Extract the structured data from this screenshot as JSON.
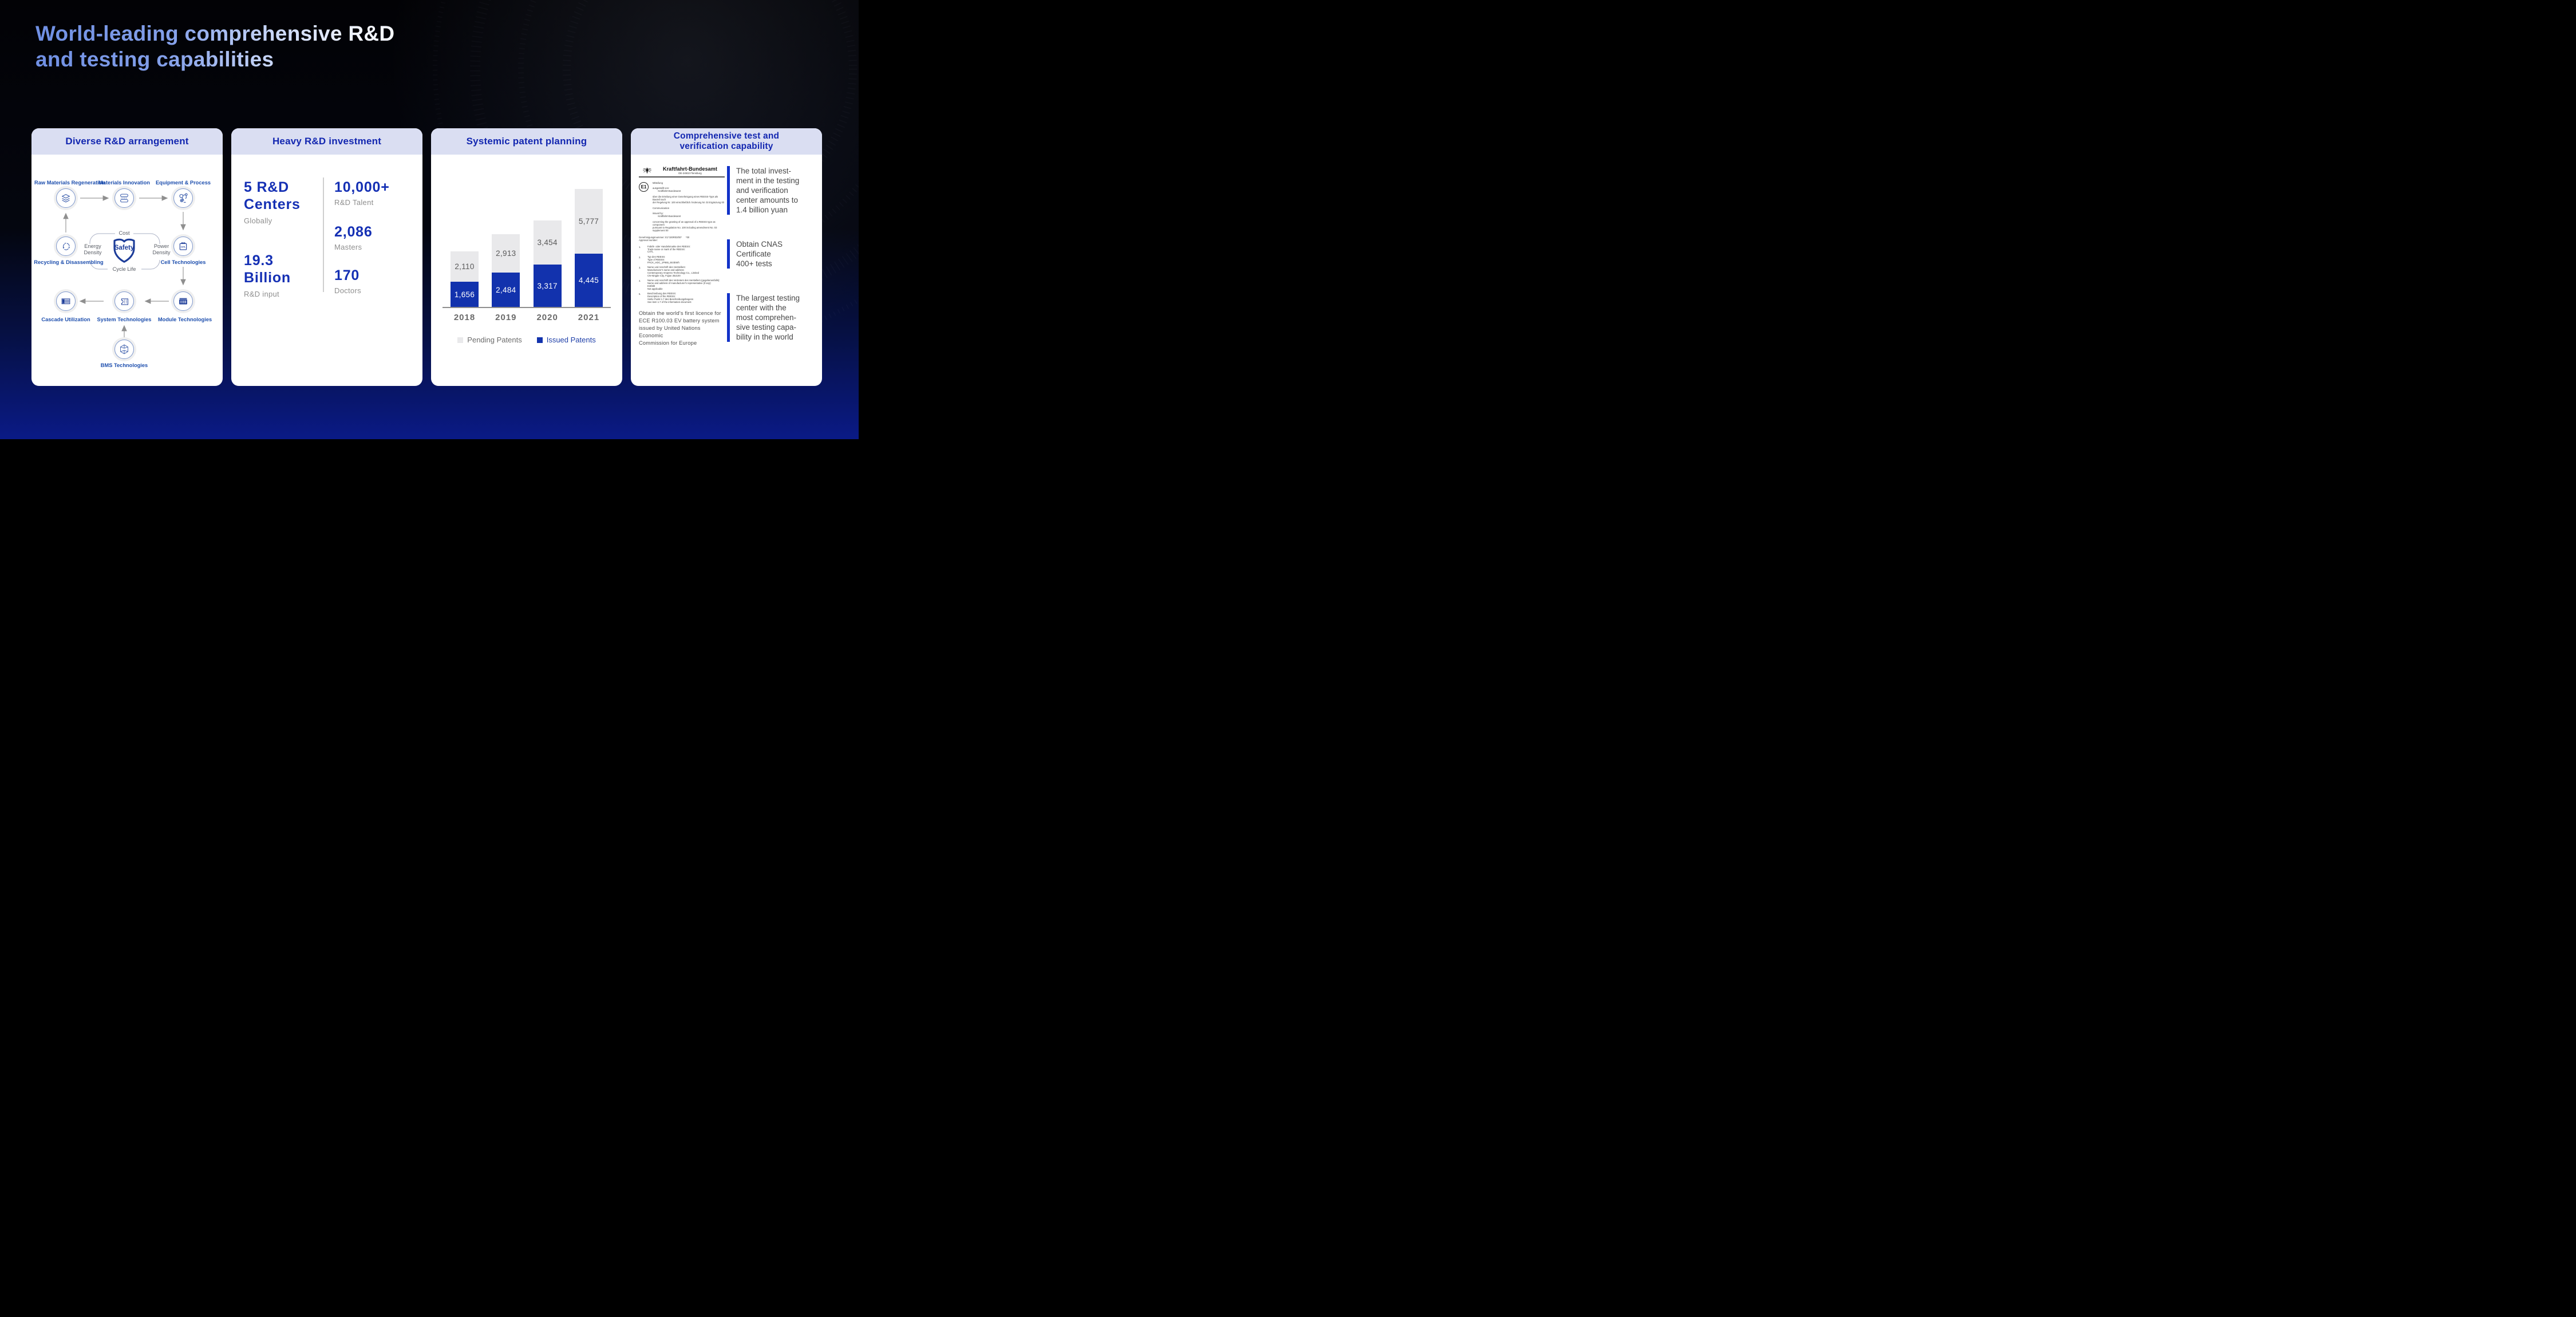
{
  "slide": {
    "title_lines": [
      "World-leading comprehensive R&D",
      "and testing capabilities"
    ]
  },
  "colors": {
    "accent_blue": "#1226b0",
    "issued_blue": "#1232ad",
    "pending_gray": "#e9e9eb",
    "header_bg": "#dadef2",
    "shield_navy": "#1d3d99",
    "bottom_gradient_blue": "#0a1a86"
  },
  "cards": {
    "rd_arrangement": {
      "title": "Diverse R&D arrangement",
      "nodes": {
        "raw": "Raw Materials Regeneration",
        "materials": "Materials Innovation",
        "equipment": "Equipment & Process",
        "recycling": "Recycling & Disassembling",
        "cell": "Cell Technologies",
        "cascade": "Cascade Utilization",
        "system": "System Technologies",
        "module": "Module Technologies",
        "bms": "BMS Technologies"
      },
      "shield": {
        "center": "Safety",
        "top": "Cost",
        "left": "Energy Density",
        "right": "Power Density",
        "bottom": "Cycle Life"
      },
      "cell_icon_text": "CATL"
    },
    "rd_investment": {
      "title": "Heavy R&D investment",
      "stats_left": [
        {
          "value_lines": [
            "5 R&D",
            "Centers"
          ],
          "caption": "Globally"
        },
        {
          "value_lines": [
            "19.3",
            "Billion"
          ],
          "caption": "R&D input"
        }
      ],
      "stats_right": [
        {
          "value": "10,000+",
          "caption": "R&D Talent"
        },
        {
          "value": "2,086",
          "caption": "Masters"
        },
        {
          "value": "170",
          "caption": "Doctors"
        }
      ]
    },
    "patents": {
      "title": "Systemic patent planning"
    },
    "testing": {
      "title_lines": [
        "Comprehensive test and",
        "verification capability"
      ],
      "certificate": {
        "authority": "Kraftfahrt-Bundesamt",
        "authority_sub": "DE-24932 Flensburg",
        "e_mark": "E1",
        "body_lines": [
          "Mitteilung",
          "",
          "ausgestellt von:",
          "        Kraftfahrt-Bundesamt",
          "",
          "über die Erteilung einer Genehmigung eines REESS-Typs als Bauteil nach",
          "der Regelung Nr. 100 einschließlich Änderung Nr. 03 Ergänzung 00",
          "",
          "Communication",
          "",
          "issued by:",
          "        Kraftfahrt-Bundesamt",
          "",
          "concerning the granting of an approval of a REESS type as component",
          "pursuant to Regulation No. 100 including amendment No. 03 supplement 00"
        ],
        "approval_lines": [
          "Genehmigungsnummer: E1*100R03/00*      *00",
          "Approval number:"
        ],
        "items": [
          {
            "num": "1.",
            "lines": [
              "Fabrik- oder Handelsmarke des REESS:",
              "Trade name or mark of the REESS:",
              "CATL"
            ]
          },
          {
            "num": "2.",
            "lines": [
              "Typ des REESS:",
              "Type of REESS:",
              "PACK_HDC_1P965_68.5kWh"
            ]
          },
          {
            "num": "3.",
            "lines": [
              "Name und Anschrift des Herstellers:",
              "Manufacturer's name and address:",
              "Contemporary Amperex Technology Co., Limited",
              "CN-Ningde City, Fujian 352100"
            ]
          },
          {
            "num": "4.",
            "lines": [
              "Name und Anschrift des Vertreters des Herstellers (gegebenenfalls):",
              "Name and address of manufacturer's representative (if any):",
              "Entfällt",
              "Not applicable"
            ]
          },
          {
            "num": "5.",
            "lines": [
              "Beschreibung des REESS:",
              "Description of the REESS:",
              "Siehe Punkt 1.7 des Beschreibungsbogens",
              "See item 1.7 of the information document"
            ]
          }
        ]
      },
      "caption_lines": [
        "Obtain the world's first licence for",
        "ECE R100.03 EV battery system",
        "issued by United Nations Economic",
        "Commission for Europe"
      ],
      "bullets": [
        {
          "lines": [
            "The total invest-",
            "ment in the testing",
            "and verification",
            "center amounts to",
            "1.4 billion yuan"
          ]
        },
        {
          "lines": [
            "Obtain CNAS",
            "Certificate",
            "400+ tests"
          ]
        },
        {
          "lines": [
            "The largest testing",
            "center with the",
            "most comprehen-",
            "sive testing capa-",
            "bility in the world"
          ]
        }
      ]
    }
  },
  "chart_data": {
    "type": "bar",
    "stacked": true,
    "title": "Systemic patent planning",
    "categories": [
      "2018",
      "2019",
      "2020",
      "2021"
    ],
    "series": [
      {
        "name": "Issued Patents",
        "color": "#1232ad",
        "values": [
          1656,
          2484,
          3317,
          4445
        ]
      },
      {
        "name": "Pending Patents",
        "color": "#e9e9eb",
        "values": [
          2110,
          2913,
          3454,
          5777
        ]
      }
    ],
    "legend_position": "bottom",
    "grid": false,
    "value_labels": true,
    "xlabel": "",
    "ylabel": ""
  }
}
